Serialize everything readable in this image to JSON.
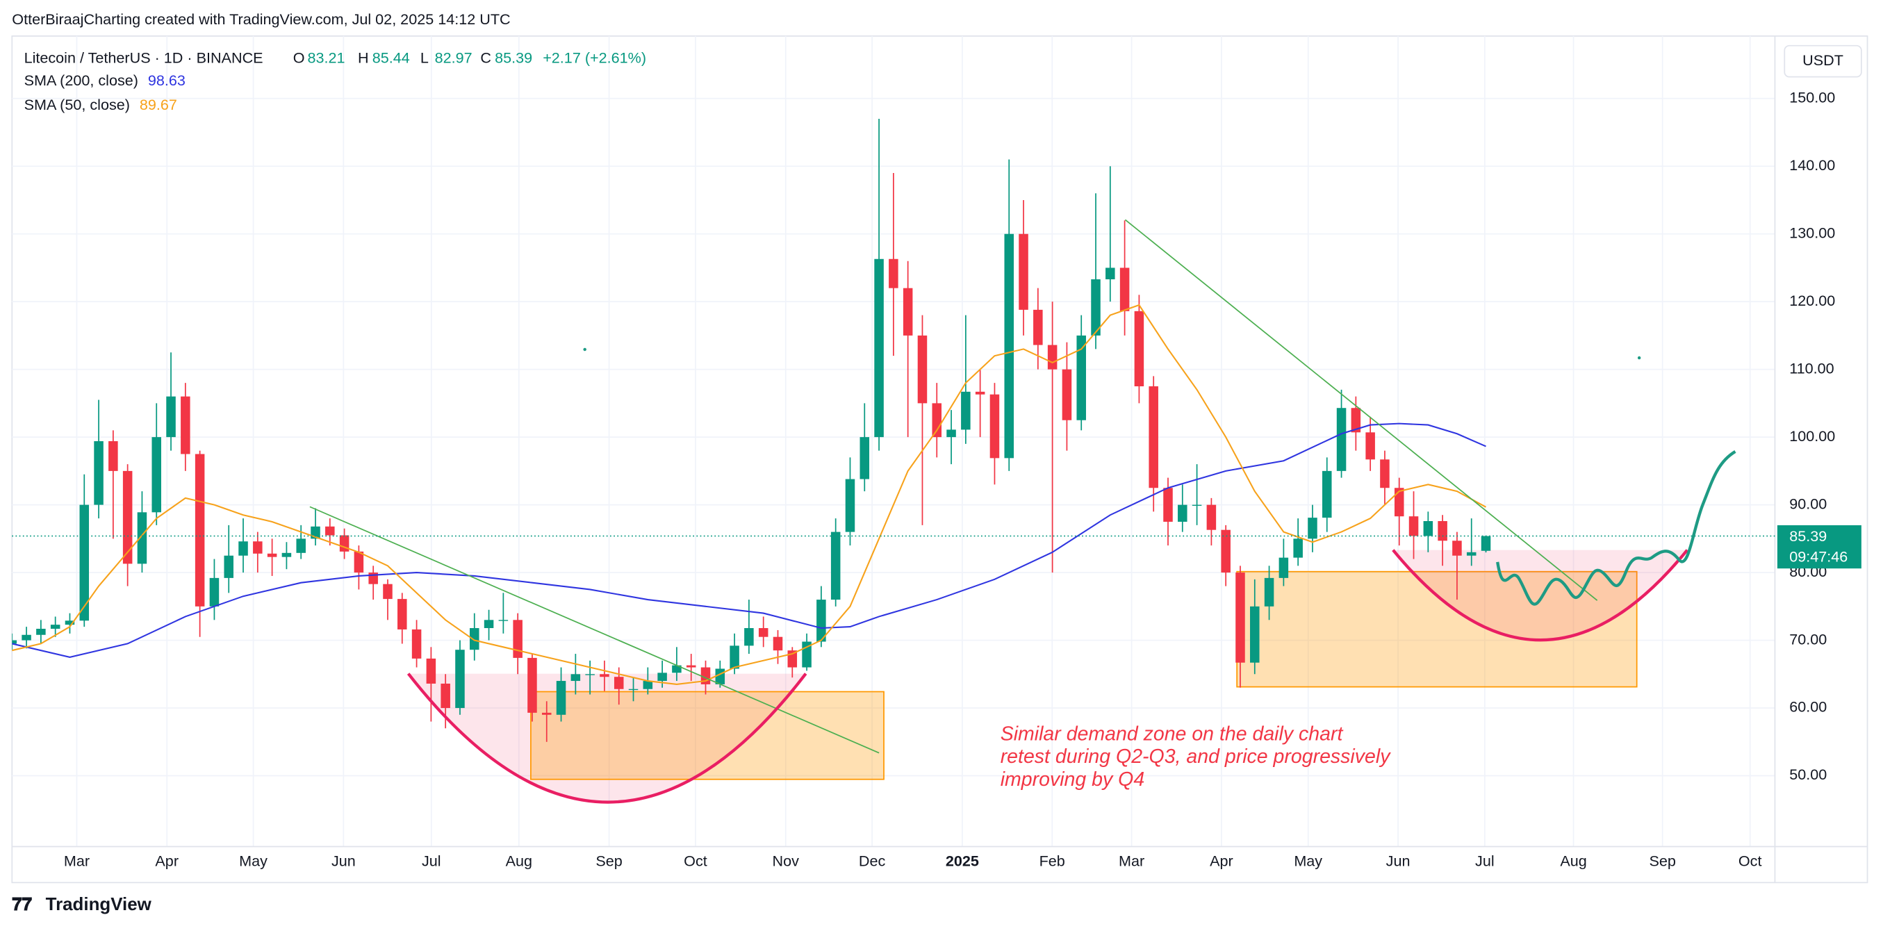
{
  "header": {
    "credit": "OtterBiraajCharting created with TradingView.com, Jul 02, 2025 14:12 UTC"
  },
  "chart_data": {
    "type": "candlestick",
    "title": "Litecoin / TetherUS · 1D · BINANCE",
    "ohlc_labels": [
      "O",
      "H",
      "L",
      "C"
    ],
    "change": "+2.17 (+2.61%)",
    "currency": "USDT",
    "countdown": "09:47:46",
    "up_color": "#089981",
    "down_color": "#f23645",
    "x": [
      0,
      5,
      10,
      15,
      20,
      25,
      30,
      35,
      40,
      45,
      50,
      55,
      60,
      65,
      70,
      75,
      80,
      85,
      90,
      95,
      100,
      105,
      110,
      115,
      120,
      125,
      130,
      135,
      140,
      145,
      150,
      155,
      160,
      165,
      170,
      175,
      180,
      185,
      190,
      195,
      200,
      205,
      210,
      215,
      220,
      225,
      230,
      235,
      240,
      245,
      250,
      255,
      260,
      265,
      270,
      275,
      280,
      285,
      290,
      295,
      300,
      305,
      310,
      315,
      320,
      325,
      330,
      335,
      340,
      345,
      350,
      355,
      360,
      365,
      370,
      375,
      380,
      385,
      390,
      395,
      400,
      405,
      410,
      415,
      420,
      425,
      430,
      435,
      440,
      445,
      450,
      455,
      460,
      465,
      470,
      475,
      480,
      485,
      490,
      495,
      500,
      505,
      510
    ],
    "ohlc": [
      [
        69.5,
        71,
        68.5,
        70
      ],
      [
        70,
        72,
        68.8,
        70.8
      ],
      [
        70.8,
        73,
        69.5,
        71.7
      ],
      [
        71.7,
        73.5,
        70.5,
        72.3
      ],
      [
        72.3,
        74,
        71,
        72.9
      ],
      [
        72.9,
        94.5,
        72,
        90
      ],
      [
        90,
        105.5,
        88,
        99.4
      ],
      [
        99.4,
        101,
        85,
        95
      ],
      [
        95,
        96,
        78,
        81.3
      ],
      [
        81.3,
        92,
        80,
        88.9
      ],
      [
        88.9,
        105,
        87,
        100
      ],
      [
        100,
        112.5,
        98,
        106
      ],
      [
        106,
        108,
        95,
        97.5
      ],
      [
        97.5,
        98,
        70.5,
        75
      ],
      [
        75,
        82,
        73,
        79.2
      ],
      [
        79.2,
        87,
        77,
        82.5
      ],
      [
        82.5,
        88,
        80,
        84.6
      ],
      [
        84.6,
        86,
        80,
        82.8
      ],
      [
        82.8,
        85,
        79.5,
        82.3
      ],
      [
        82.3,
        84.5,
        80.5,
        82.9
      ],
      [
        82.9,
        87,
        82,
        85
      ],
      [
        85,
        89.5,
        84,
        86.8
      ],
      [
        86.8,
        88,
        84,
        85.5
      ],
      [
        85.5,
        86.5,
        82,
        83.1
      ],
      [
        83.1,
        84,
        77.5,
        80
      ],
      [
        80,
        81,
        76,
        78.3
      ],
      [
        78.3,
        79,
        73,
        76.1
      ],
      [
        76.1,
        77,
        69.5,
        71.6
      ],
      [
        71.6,
        73,
        66,
        67.3
      ],
      [
        67.3,
        69,
        58,
        63.6
      ],
      [
        63.6,
        65,
        57,
        60
      ],
      [
        60,
        70,
        59,
        68.6
      ],
      [
        68.6,
        74,
        67,
        71.8
      ],
      [
        71.8,
        74.5,
        70,
        73
      ],
      [
        73,
        77,
        71,
        73
      ],
      [
        73,
        74,
        65,
        67.4
      ],
      [
        67.4,
        68,
        58,
        59.3
      ],
      [
        59.3,
        61,
        55,
        59
      ],
      [
        59,
        66,
        58,
        64
      ],
      [
        64,
        68,
        62,
        65
      ],
      [
        65,
        67,
        62,
        65
      ],
      [
        65,
        67,
        62.5,
        64.6
      ],
      [
        64.6,
        66,
        60.5,
        62.8
      ],
      [
        62.8,
        64.5,
        61,
        62.8
      ],
      [
        62.8,
        66,
        62,
        64
      ],
      [
        64,
        67,
        63,
        65.2
      ],
      [
        65.2,
        69,
        64,
        66.3
      ],
      [
        66.3,
        68,
        64,
        66
      ],
      [
        66,
        67,
        62,
        63.5
      ],
      [
        63.5,
        67,
        63,
        65.8
      ],
      [
        65.8,
        71,
        65,
        69.2
      ],
      [
        69.2,
        76,
        68,
        71.8
      ],
      [
        71.8,
        73.5,
        69,
        70.5
      ],
      [
        70.5,
        71.5,
        66.5,
        68.5
      ],
      [
        68.5,
        69,
        64.5,
        66
      ],
      [
        66,
        71,
        65.5,
        69.8
      ],
      [
        69.8,
        78,
        69,
        76
      ],
      [
        76,
        88,
        75,
        86
      ],
      [
        86,
        97,
        84,
        93.8
      ],
      [
        93.8,
        105,
        92,
        100
      ],
      [
        100,
        147,
        98,
        126.3
      ],
      [
        126.3,
        139,
        112,
        122
      ],
      [
        122,
        126,
        100,
        115
      ],
      [
        115,
        118,
        87,
        105
      ],
      [
        105,
        108,
        97,
        100
      ],
      [
        100,
        104,
        96,
        101.1
      ],
      [
        101.1,
        118,
        99,
        106.7
      ],
      [
        106.7,
        110,
        100,
        106.3
      ],
      [
        106.3,
        108,
        93,
        96.9
      ],
      [
        96.9,
        141,
        95,
        130
      ],
      [
        130,
        135,
        115,
        118.8
      ],
      [
        118.8,
        122,
        110,
        113.6
      ],
      [
        113.6,
        120,
        80,
        110
      ],
      [
        110,
        114,
        98,
        102.5
      ],
      [
        102.5,
        118,
        101,
        115
      ],
      [
        115,
        136,
        113,
        123.3
      ],
      [
        123.3,
        140,
        120,
        125
      ],
      [
        125,
        132,
        115,
        118.6
      ],
      [
        118.6,
        121,
        105,
        107.5
      ],
      [
        107.5,
        109,
        89,
        92.5
      ],
      [
        92.5,
        94,
        84,
        87.5
      ],
      [
        87.5,
        93,
        86,
        90
      ],
      [
        90,
        96,
        87,
        90
      ],
      [
        90,
        91,
        84,
        86.3
      ],
      [
        86.3,
        87,
        78,
        80
      ],
      [
        80,
        81,
        63,
        66.7
      ],
      [
        66.7,
        79,
        65,
        75
      ],
      [
        75,
        81,
        73,
        79.2
      ],
      [
        79.2,
        85,
        78,
        82.2
      ],
      [
        82.2,
        88,
        81,
        85
      ],
      [
        85,
        90,
        83,
        88.1
      ],
      [
        88.1,
        97,
        86,
        95
      ],
      [
        95,
        107,
        94,
        104.3
      ],
      [
        104.3,
        106,
        98,
        100.7
      ],
      [
        100.7,
        103,
        95,
        96.7
      ],
      [
        96.7,
        98,
        90,
        92.5
      ],
      [
        92.5,
        94,
        84,
        88.3
      ],
      [
        88.3,
        92,
        82,
        85.4
      ],
      [
        85.4,
        89,
        83,
        87.6
      ],
      [
        87.6,
        88.5,
        81,
        84.7
      ],
      [
        84.7,
        86,
        76,
        82.5
      ],
      [
        82.5,
        88,
        81,
        83
      ],
      [
        83.21,
        85.44,
        82.97,
        85.39
      ]
    ],
    "series": [
      {
        "name": "SMA (200, close)",
        "color": "#2f35e0",
        "x": [
          0,
          20,
          40,
          60,
          80,
          100,
          120,
          140,
          160,
          180,
          200,
          220,
          240,
          260,
          280,
          290,
          300,
          320,
          340,
          360,
          380,
          400,
          420,
          440,
          460,
          470,
          480,
          490,
          500,
          510
        ],
        "values": [
          69.5,
          67.5,
          69.5,
          73.5,
          76.5,
          78.5,
          79.5,
          80,
          79.5,
          78.5,
          77.5,
          76,
          75,
          74,
          71.8,
          72,
          73.5,
          76,
          79,
          83,
          88.5,
          92.5,
          95,
          96.5,
          100.5,
          101.8,
          102,
          101.8,
          100.5,
          98.63
        ]
      },
      {
        "name": "SMA (50, close)",
        "color": "#f7a21b",
        "x": [
          0,
          10,
          20,
          30,
          40,
          50,
          60,
          70,
          80,
          90,
          100,
          110,
          120,
          130,
          140,
          150,
          160,
          170,
          180,
          190,
          200,
          210,
          220,
          230,
          240,
          250,
          260,
          270,
          280,
          290,
          300,
          310,
          320,
          330,
          340,
          350,
          360,
          370,
          380,
          390,
          400,
          410,
          420,
          430,
          440,
          450,
          460,
          470,
          480,
          490,
          500,
          510
        ],
        "values": [
          68.5,
          69.5,
          72,
          78,
          83,
          88,
          91,
          90,
          88.5,
          87.5,
          86,
          84.5,
          83,
          81,
          77,
          73,
          70,
          69,
          68,
          67,
          66,
          65,
          64,
          63.5,
          64,
          66,
          67,
          68,
          70,
          75,
          85,
          95,
          101,
          108,
          112,
          113,
          111,
          113,
          118,
          119.5,
          113,
          107,
          100,
          92,
          86,
          84.5,
          86,
          88,
          92,
          93,
          92,
          89.67
        ]
      }
    ],
    "xlim": [
      0,
      610
    ],
    "ylim": [
      39.54,
      159.22
    ],
    "xticks": [
      {
        "value": 22.4,
        "label": "Mar"
      },
      {
        "value": 53.6,
        "label": "Apr"
      },
      {
        "value": 83.5,
        "label": "May"
      },
      {
        "value": 114.7,
        "label": "Jun"
      },
      {
        "value": 145.1,
        "label": "Jul"
      },
      {
        "value": 175.4,
        "label": "Aug"
      },
      {
        "value": 206.6,
        "label": "Sep"
      },
      {
        "value": 236.5,
        "label": "Oct"
      },
      {
        "value": 267.7,
        "label": "Nov"
      },
      {
        "value": 297.6,
        "label": "Dec"
      },
      {
        "value": 328.8,
        "label": "2025"
      },
      {
        "value": 359.9,
        "label": "Feb"
      },
      {
        "value": 387.4,
        "label": "Mar"
      },
      {
        "value": 418.5,
        "label": "Apr"
      },
      {
        "value": 448.5,
        "label": "May"
      },
      {
        "value": 479.6,
        "label": "Jun"
      },
      {
        "value": 509.6,
        "label": "Jul"
      },
      {
        "value": 540.3,
        "label": "Aug"
      },
      {
        "value": 571.1,
        "label": "Sep"
      },
      {
        "value": 601.4,
        "label": "Oct"
      }
    ],
    "yticks": [
      {
        "value": 50,
        "label": "50.00"
      },
      {
        "value": 60,
        "label": "60.00"
      },
      {
        "value": 70,
        "label": "70.00"
      },
      {
        "value": 80,
        "label": "80.00"
      },
      {
        "value": 90,
        "label": "90.00"
      },
      {
        "value": 100,
        "label": "100.00"
      },
      {
        "value": 110,
        "label": "110.00"
      },
      {
        "value": 120,
        "label": "120.00"
      },
      {
        "value": 130,
        "label": "130.00"
      },
      {
        "value": 140,
        "label": "140.00"
      },
      {
        "value": 150,
        "label": "150.00"
      }
    ],
    "grid": true,
    "annotation": [
      "Similar demand zone on the daily chart",
      "retest during Q2-Q3, and price progressively",
      "improving by Q4"
    ]
  },
  "footer": {
    "brand": "TradingView"
  }
}
